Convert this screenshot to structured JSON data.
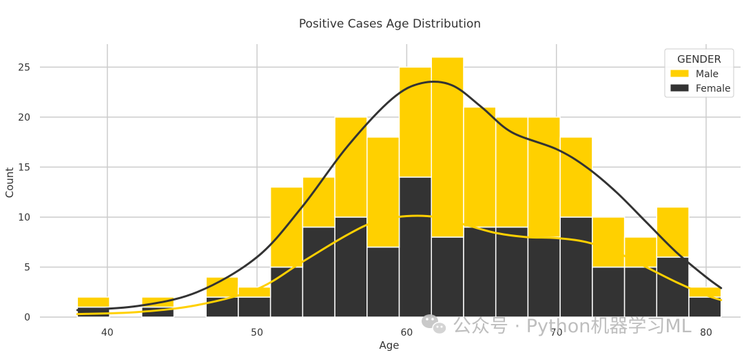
{
  "chart_data": {
    "type": "histogram-stacked",
    "title": "Positive Cases Age Distribution",
    "xlabel": "Age",
    "ylabel": "Count",
    "xlim": [
      35.5,
      82.3
    ],
    "ylim": [
      0,
      27.3
    ],
    "xticks": [
      40,
      50,
      60,
      70,
      80
    ],
    "yticks": [
      0,
      5,
      10,
      15,
      20,
      25
    ],
    "bin_edges": [
      38.0,
      40.15,
      42.3,
      44.45,
      46.6,
      48.75,
      50.9,
      53.05,
      55.2,
      57.35,
      59.5,
      61.65,
      63.8,
      65.95,
      68.1,
      70.25,
      72.4,
      74.55,
      76.7,
      78.85,
      81.0
    ],
    "legend": {
      "title": "GENDER",
      "position": "top-right",
      "entries": [
        {
          "label": "Male",
          "color": "#FFD000"
        },
        {
          "label": "Female",
          "color": "#333333"
        }
      ]
    },
    "series": [
      {
        "name": "Female",
        "color": "#333333",
        "values": [
          1,
          0,
          1,
          0,
          2,
          2,
          5,
          9,
          10,
          7,
          14,
          8,
          9,
          9,
          8,
          10,
          5,
          5,
          6,
          2
        ]
      },
      {
        "name": "Male",
        "color": "#FFD000",
        "values": [
          1,
          0,
          1,
          0,
          2,
          1,
          8,
          5,
          10,
          11,
          11,
          18,
          12,
          11,
          12,
          8,
          5,
          3,
          5,
          1
        ]
      }
    ],
    "kde": [
      {
        "name": "Female",
        "color": "#333333",
        "points": [
          [
            38,
            0.7
          ],
          [
            42,
            1.1
          ],
          [
            46,
            2.5
          ],
          [
            50,
            6.0
          ],
          [
            53,
            11.0
          ],
          [
            56,
            17.0
          ],
          [
            59,
            21.8
          ],
          [
            61,
            23.4
          ],
          [
            63,
            23.2
          ],
          [
            65,
            21.0
          ],
          [
            67,
            18.5
          ],
          [
            70,
            16.8
          ],
          [
            72,
            15.0
          ],
          [
            74,
            12.5
          ],
          [
            76,
            9.5
          ],
          [
            78,
            6.5
          ],
          [
            80,
            4.0
          ],
          [
            81,
            2.9
          ]
        ]
      },
      {
        "name": "Male",
        "color": "#FFD000",
        "points": [
          [
            38,
            0.3
          ],
          [
            42,
            0.5
          ],
          [
            46,
            1.2
          ],
          [
            50,
            2.8
          ],
          [
            53,
            5.5
          ],
          [
            56,
            8.2
          ],
          [
            58,
            9.6
          ],
          [
            60,
            10.1
          ],
          [
            62,
            10.0
          ],
          [
            64,
            9.2
          ],
          [
            66,
            8.4
          ],
          [
            68,
            8.0
          ],
          [
            70,
            7.9
          ],
          [
            72,
            7.5
          ],
          [
            74,
            6.5
          ],
          [
            76,
            5.0
          ],
          [
            78,
            3.5
          ],
          [
            80,
            2.2
          ],
          [
            81,
            1.7
          ]
        ]
      }
    ]
  },
  "watermark": {
    "text": "公众号 · Python机器学习ML",
    "icon": "wechat-icon"
  }
}
